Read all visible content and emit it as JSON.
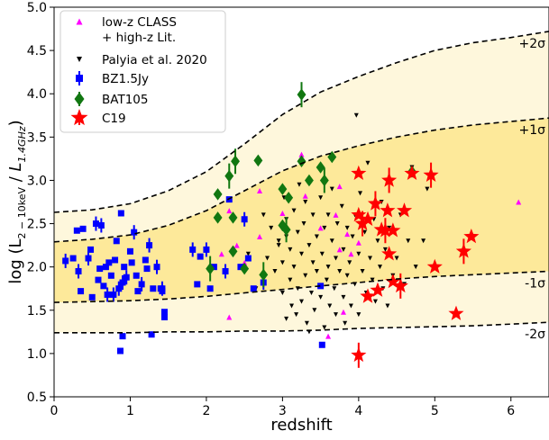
{
  "chart_data": {
    "type": "scatter",
    "xlabel": "redshift",
    "ylabel": {
      "prefix": "log (L",
      "sub1": "2 − 10keV",
      "mid": " / ",
      "italic": "L",
      "sub2": "1.4GHz",
      "suffix": ")"
    },
    "xlim": [
      0,
      6.5
    ],
    "ylim": [
      0.5,
      5.0
    ],
    "xticks": [
      "0",
      "1",
      "2",
      "3",
      "4",
      "5",
      "6"
    ],
    "yticks": [
      "0.5",
      "1.0",
      "1.5",
      "2.0",
      "2.5",
      "3.0",
      "3.5",
      "4.0",
      "4.5",
      "5.0"
    ],
    "grid": false,
    "legend_position": "top-left",
    "bands": [
      {
        "label": "+2σ",
        "points": [
          [
            0,
            2.63
          ],
          [
            0.5,
            2.66
          ],
          [
            1,
            2.73
          ],
          [
            1.5,
            2.88
          ],
          [
            2,
            3.1
          ],
          [
            2.5,
            3.42
          ],
          [
            3,
            3.76
          ],
          [
            3.5,
            4.02
          ],
          [
            4,
            4.2
          ],
          [
            4.5,
            4.36
          ],
          [
            5,
            4.5
          ],
          [
            5.5,
            4.59
          ],
          [
            6,
            4.65
          ],
          [
            6.5,
            4.72
          ]
        ]
      },
      {
        "label": "+1σ",
        "points": [
          [
            0,
            2.29
          ],
          [
            0.5,
            2.32
          ],
          [
            1,
            2.37
          ],
          [
            1.5,
            2.48
          ],
          [
            2,
            2.65
          ],
          [
            2.5,
            2.88
          ],
          [
            3,
            3.11
          ],
          [
            3.5,
            3.28
          ],
          [
            4,
            3.4
          ],
          [
            4.5,
            3.5
          ],
          [
            5,
            3.58
          ],
          [
            5.5,
            3.64
          ],
          [
            6,
            3.68
          ],
          [
            6.5,
            3.72
          ]
        ]
      },
      {
        "label": "-1σ",
        "points": [
          [
            0,
            1.59
          ],
          [
            0.5,
            1.6
          ],
          [
            1,
            1.61
          ],
          [
            1.5,
            1.63
          ],
          [
            2,
            1.66
          ],
          [
            2.5,
            1.7
          ],
          [
            3,
            1.74
          ],
          [
            3.5,
            1.78
          ],
          [
            4,
            1.82
          ],
          [
            4.5,
            1.86
          ],
          [
            5,
            1.89
          ],
          [
            5.5,
            1.91
          ],
          [
            6,
            1.93
          ],
          [
            6.5,
            1.95
          ]
        ]
      },
      {
        "label": "-2σ",
        "points": [
          [
            0,
            1.24
          ],
          [
            0.5,
            1.24
          ],
          [
            1,
            1.24
          ],
          [
            1.5,
            1.25
          ],
          [
            2,
            1.25
          ],
          [
            2.5,
            1.26
          ],
          [
            3,
            1.26
          ],
          [
            3.5,
            1.27
          ],
          [
            4,
            1.29
          ],
          [
            4.5,
            1.3
          ],
          [
            5,
            1.31
          ],
          [
            5.5,
            1.32
          ],
          [
            6,
            1.34
          ],
          [
            6.5,
            1.36
          ]
        ]
      }
    ],
    "band_colors": {
      "outer": "#fef7dc",
      "inner": "#fde99a"
    },
    "series": [
      {
        "name": "low-z CLASS\n+ high-z Lit.",
        "marker": "triangle-up",
        "color": "#ff00ff",
        "points": [
          [
            2.2,
            2.15
          ],
          [
            2.3,
            2.65
          ],
          [
            2.4,
            2.25
          ],
          [
            2.5,
            2.05
          ],
          [
            2.7,
            2.35
          ],
          [
            2.7,
            2.88
          ],
          [
            2.3,
            1.42
          ],
          [
            3.0,
            2.62
          ],
          [
            3.25,
            3.3
          ],
          [
            3.3,
            2.82
          ],
          [
            3.5,
            2.45
          ],
          [
            3.6,
            1.2
          ],
          [
            3.7,
            2.6
          ],
          [
            3.75,
            2.93
          ],
          [
            3.8,
            1.48
          ],
          [
            3.85,
            2.38
          ],
          [
            3.9,
            2.15
          ],
          [
            3.75,
            2.2
          ],
          [
            4.0,
            2.28
          ],
          [
            6.1,
            2.75
          ]
        ]
      },
      {
        "name": "Palyia et al. 2020",
        "marker": "triangle-down",
        "color": "#000000",
        "points": [
          [
            2.55,
            2.15
          ],
          [
            2.65,
            1.75
          ],
          [
            2.75,
            2.6
          ],
          [
            2.8,
            2.1
          ],
          [
            2.85,
            2.45
          ],
          [
            2.9,
            1.95
          ],
          [
            2.95,
            2.3
          ],
          [
            3.0,
            2.05
          ],
          [
            3.0,
            1.7
          ],
          [
            3.02,
            2.8
          ],
          [
            3.05,
            1.4
          ],
          [
            3.05,
            2.55
          ],
          [
            3.1,
            2.2
          ],
          [
            3.1,
            1.85
          ],
          [
            3.12,
            1.55
          ],
          [
            3.15,
            2.65
          ],
          [
            3.15,
            2.0
          ],
          [
            3.18,
            1.45
          ],
          [
            3.2,
            2.4
          ],
          [
            3.2,
            1.75
          ],
          [
            3.22,
            2.95
          ],
          [
            3.25,
            2.15
          ],
          [
            3.25,
            1.6
          ],
          [
            3.28,
            2.5
          ],
          [
            3.3,
            1.9
          ],
          [
            3.3,
            2.75
          ],
          [
            3.32,
            1.35
          ],
          [
            3.35,
            2.25
          ],
          [
            3.38,
            1.7
          ],
          [
            3.4,
            2.05
          ],
          [
            3.4,
            2.6
          ],
          [
            3.42,
            1.5
          ],
          [
            3.45,
            2.35
          ],
          [
            3.45,
            1.95
          ],
          [
            3.5,
            2.8
          ],
          [
            3.5,
            1.65
          ],
          [
            3.52,
            2.15
          ],
          [
            3.55,
            2.45
          ],
          [
            3.55,
            1.3
          ],
          [
            3.58,
            1.85
          ],
          [
            3.6,
            2.6
          ],
          [
            3.6,
            2.0
          ],
          [
            3.62,
            1.55
          ],
          [
            3.65,
            2.3
          ],
          [
            3.65,
            2.9
          ],
          [
            3.68,
            1.75
          ],
          [
            3.7,
            2.1
          ],
          [
            3.7,
            1.45
          ],
          [
            3.72,
            2.5
          ],
          [
            3.75,
            1.95
          ],
          [
            3.78,
            2.7
          ],
          [
            3.8,
            1.65
          ],
          [
            3.8,
            2.2
          ],
          [
            3.82,
            1.35
          ],
          [
            3.85,
            2.45
          ],
          [
            3.85,
            1.9
          ],
          [
            3.88,
            2.05
          ],
          [
            3.9,
            1.55
          ],
          [
            3.92,
            2.35
          ],
          [
            3.95,
            2.6
          ],
          [
            3.95,
            1.8
          ],
          [
            3.97,
            3.75
          ],
          [
            4.0,
            2.15
          ],
          [
            4.0,
            1.45
          ],
          [
            4.02,
            2.85
          ],
          [
            4.05,
            1.95
          ],
          [
            4.08,
            2.4
          ],
          [
            4.1,
            1.7
          ],
          [
            4.12,
            3.2
          ],
          [
            4.15,
            2.1
          ],
          [
            4.18,
            1.85
          ],
          [
            4.2,
            2.55
          ],
          [
            4.22,
            1.6
          ],
          [
            4.25,
            2.3
          ],
          [
            4.28,
            2.0
          ],
          [
            4.3,
            2.75
          ],
          [
            4.32,
            1.75
          ],
          [
            4.35,
            2.2
          ],
          [
            4.38,
            1.55
          ],
          [
            4.4,
            2.45
          ],
          [
            4.45,
            1.9
          ],
          [
            4.5,
            2.1
          ],
          [
            4.55,
            2.6
          ],
          [
            4.6,
            1.8
          ],
          [
            4.65,
            2.3
          ],
          [
            4.7,
            3.15
          ],
          [
            4.75,
            2.0
          ],
          [
            4.85,
            2.3
          ],
          [
            4.9,
            2.9
          ],
          [
            2.95,
            2.25
          ],
          [
            3.35,
            1.25
          ],
          [
            3.05,
            2.35
          ]
        ]
      },
      {
        "name": "BZ1.5Jy",
        "marker": "square",
        "color": "#0000ff",
        "errorbars": true,
        "points": [
          [
            0.15,
            2.07
          ],
          [
            0.25,
            2.1
          ],
          [
            0.3,
            2.42
          ],
          [
            0.32,
            1.95
          ],
          [
            0.35,
            1.72
          ],
          [
            0.38,
            2.44
          ],
          [
            0.45,
            2.1
          ],
          [
            0.48,
            2.2
          ],
          [
            0.5,
            1.65
          ],
          [
            0.55,
            2.5
          ],
          [
            0.58,
            1.85
          ],
          [
            0.6,
            1.98
          ],
          [
            0.62,
            2.48
          ],
          [
            0.65,
            1.78
          ],
          [
            0.68,
            2.0
          ],
          [
            0.7,
            1.68
          ],
          [
            0.72,
            2.05
          ],
          [
            0.75,
            1.9
          ],
          [
            0.78,
            1.68
          ],
          [
            0.8,
            2.08
          ],
          [
            0.82,
            2.3
          ],
          [
            0.85,
            1.75
          ],
          [
            0.87,
            1.03
          ],
          [
            0.88,
            2.62
          ],
          [
            0.9,
            1.82
          ],
          [
            0.9,
            1.2
          ],
          [
            0.92,
            2.0
          ],
          [
            0.95,
            1.88
          ],
          [
            1.0,
            2.18
          ],
          [
            1.02,
            2.05
          ],
          [
            1.05,
            2.4
          ],
          [
            1.08,
            1.9
          ],
          [
            1.1,
            1.72
          ],
          [
            1.15,
            1.8
          ],
          [
            1.2,
            2.08
          ],
          [
            1.22,
            1.98
          ],
          [
            1.25,
            2.25
          ],
          [
            1.28,
            1.22
          ],
          [
            1.3,
            1.75
          ],
          [
            1.35,
            2.0
          ],
          [
            1.4,
            1.75
          ],
          [
            1.42,
            1.72
          ],
          [
            1.42,
            1.75
          ],
          [
            1.45,
            1.48
          ],
          [
            1.45,
            1.42
          ],
          [
            1.82,
            2.2
          ],
          [
            1.88,
            1.8
          ],
          [
            1.92,
            2.12
          ],
          [
            2.0,
            2.2
          ],
          [
            2.05,
            1.75
          ],
          [
            2.1,
            2.0
          ],
          [
            2.25,
            1.95
          ],
          [
            2.3,
            2.78
          ],
          [
            2.45,
            2.0
          ],
          [
            2.5,
            2.55
          ],
          [
            2.55,
            2.1
          ],
          [
            2.62,
            1.75
          ],
          [
            2.75,
            1.82
          ],
          [
            3.5,
            1.78
          ],
          [
            3.52,
            1.1
          ]
        ]
      },
      {
        "name": "BAT105",
        "marker": "diamond",
        "color": "#117711",
        "errorbars": true,
        "points": [
          [
            2.05,
            1.98
          ],
          [
            2.15,
            2.84
          ],
          [
            2.15,
            2.57
          ],
          [
            2.3,
            3.05
          ],
          [
            2.35,
            2.18
          ],
          [
            2.35,
            2.57
          ],
          [
            2.38,
            3.22
          ],
          [
            2.5,
            1.98
          ],
          [
            2.68,
            3.23
          ],
          [
            2.75,
            1.91
          ],
          [
            3.0,
            2.9
          ],
          [
            3.0,
            2.48
          ],
          [
            3.05,
            2.43
          ],
          [
            3.08,
            2.8
          ],
          [
            3.25,
            3.22
          ],
          [
            3.25,
            3.99
          ],
          [
            3.35,
            3.0
          ],
          [
            3.5,
            3.15
          ],
          [
            3.55,
            3.0
          ],
          [
            3.65,
            3.27
          ],
          [
            4.7,
            3.1
          ]
        ]
      },
      {
        "name": "C19",
        "marker": "star",
        "color": "#ff0000",
        "errorbars": true,
        "points": [
          [
            4.0,
            0.98
          ],
          [
            4.0,
            3.08
          ],
          [
            4.0,
            2.6
          ],
          [
            4.05,
            2.5
          ],
          [
            4.12,
            2.55
          ],
          [
            4.12,
            1.66
          ],
          [
            4.22,
            2.73
          ],
          [
            4.25,
            1.73
          ],
          [
            4.3,
            2.43
          ],
          [
            4.35,
            2.42
          ],
          [
            4.38,
            2.65
          ],
          [
            4.4,
            2.15
          ],
          [
            4.4,
            3.0
          ],
          [
            4.45,
            2.42
          ],
          [
            4.45,
            1.83
          ],
          [
            4.55,
            1.78
          ],
          [
            4.6,
            2.65
          ],
          [
            4.7,
            3.08
          ],
          [
            4.95,
            3.06
          ],
          [
            5.0,
            2.0
          ],
          [
            5.28,
            1.46
          ],
          [
            5.38,
            2.18
          ],
          [
            5.48,
            2.35
          ]
        ]
      }
    ]
  }
}
